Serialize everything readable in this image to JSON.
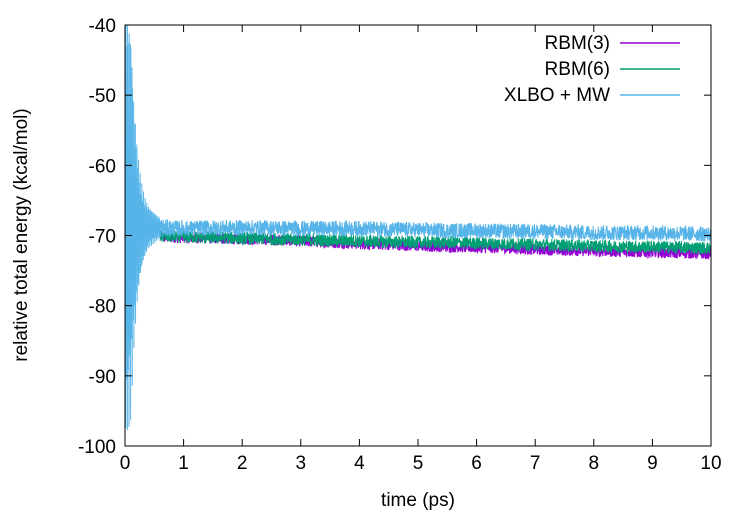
{
  "chart_data": {
    "type": "line",
    "title": "",
    "xlabel": "time (ps)",
    "ylabel": "relative total energy (kcal/mol)",
    "xlim": [
      0,
      10
    ],
    "ylim": [
      -100,
      -40
    ],
    "x_ticks": [
      "0",
      "1",
      "2",
      "3",
      "4",
      "5",
      "6",
      "7",
      "8",
      "9",
      "10"
    ],
    "y_ticks": [
      "-100",
      "-90",
      "-80",
      "-70",
      "-60",
      "-50",
      "-40"
    ],
    "grid": false,
    "legend_position": "top-right",
    "series": [
      {
        "name": "RBM(3)",
        "color": "#9400d3",
        "x": [
          0.6,
          1,
          1.5,
          2,
          2.5,
          3,
          3.5,
          4,
          4.5,
          5,
          5.5,
          6,
          6.5,
          7,
          7.5,
          8,
          8.5,
          9,
          9.5,
          10
        ],
        "y": [
          -70.2,
          -70.3,
          -70.4,
          -70.5,
          -70.6,
          -70.8,
          -71.0,
          -71.2,
          -71.3,
          -71.5,
          -71.6,
          -71.7,
          -71.8,
          -72.0,
          -72.1,
          -72.2,
          -72.3,
          -72.4,
          -72.5,
          -72.6
        ],
        "band": 0.8
      },
      {
        "name": "RBM(6)",
        "color": "#009e73",
        "x": [
          0.6,
          1,
          1.5,
          2,
          2.5,
          3,
          3.5,
          4,
          4.5,
          5,
          5.5,
          6,
          6.5,
          7,
          7.5,
          8,
          8.5,
          9,
          9.5,
          10
        ],
        "y": [
          -70.1,
          -70.2,
          -70.3,
          -70.4,
          -70.5,
          -70.6,
          -70.7,
          -70.8,
          -70.9,
          -71.0,
          -71.0,
          -71.1,
          -71.2,
          -71.3,
          -71.4,
          -71.5,
          -71.6,
          -71.6,
          -71.7,
          -71.8
        ],
        "band": 0.9
      },
      {
        "name": "XLBO + MW",
        "color": "#56b4e9",
        "x": [
          0.0,
          0.05,
          0.1,
          0.15,
          0.2,
          0.25,
          0.3,
          0.35,
          0.4,
          0.5,
          0.6,
          0.8,
          1,
          1.5,
          2,
          2.5,
          3,
          3.5,
          4,
          4.5,
          5,
          5.5,
          6,
          6.5,
          7,
          7.5,
          8,
          8.5,
          9,
          9.5,
          10
        ],
        "y": [
          -68.0,
          -68.0,
          -68.2,
          -68.4,
          -68.5,
          -68.6,
          -68.7,
          -68.8,
          -68.8,
          -68.9,
          -68.9,
          -69.0,
          -69.0,
          -68.9,
          -68.9,
          -68.9,
          -69.0,
          -69.0,
          -69.0,
          -69.1,
          -69.2,
          -69.3,
          -69.3,
          -69.4,
          -69.4,
          -69.5,
          -69.6,
          -69.6,
          -69.6,
          -69.7,
          -69.8
        ],
        "band_envelope": [
          30,
          30,
          28,
          18,
          12,
          8,
          5.5,
          4,
          3,
          2.2,
          1.4,
          1.2,
          1.1,
          1.1,
          1.1,
          1.1,
          1.1,
          1.1,
          1.1,
          1.1,
          1.1,
          1.1,
          1.1,
          1.1,
          1.1,
          1.1,
          1.1,
          1.1,
          1.1,
          1.1,
          1.1
        ]
      }
    ]
  }
}
